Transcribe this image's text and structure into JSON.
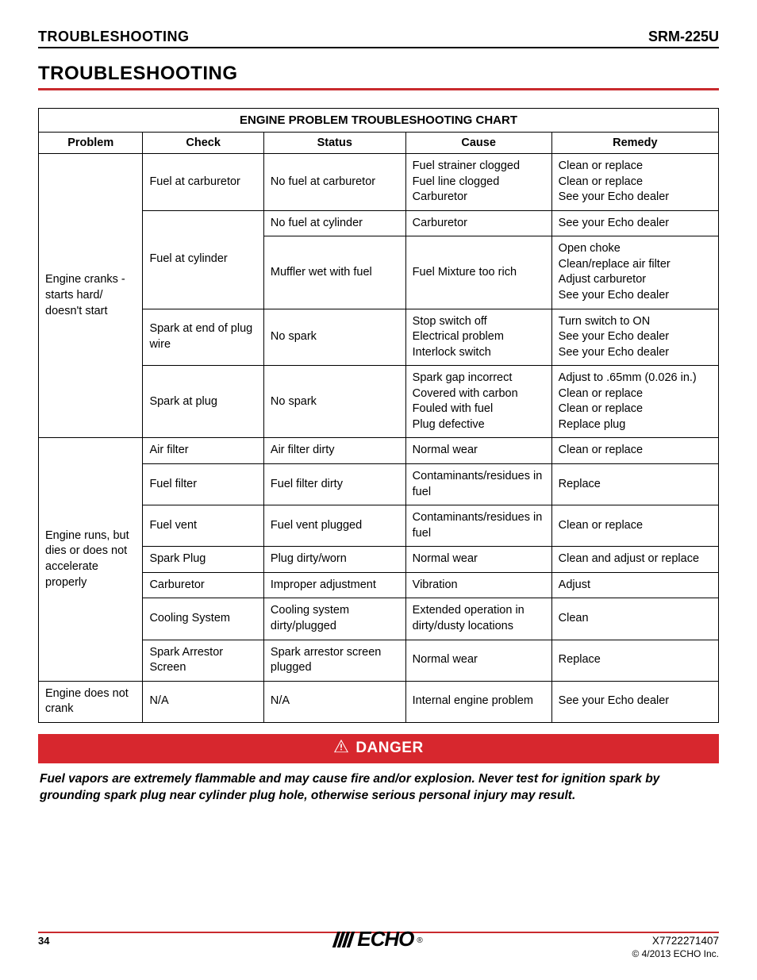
{
  "header": {
    "left": "TROUBLESHOOTING",
    "right": "SRM-225U"
  },
  "section_title": "TROUBLESHOOTING",
  "table": {
    "caption": "ENGINE PROBLEM TROUBLESHOOTING CHART",
    "columns": [
      "Problem",
      "Check",
      "Status",
      "Cause",
      "Remedy"
    ],
    "groups": [
      {
        "problem": "Engine cranks - starts hard/ doesn't start",
        "checks": [
          {
            "check": "Fuel at carburetor",
            "rows": [
              {
                "status": "No fuel at carburetor",
                "cause": "Fuel strainer clogged\nFuel line clogged\nCarburetor",
                "remedy": "Clean or replace\nClean or replace\nSee your Echo dealer"
              }
            ]
          },
          {
            "check": "Fuel at cylinder",
            "rows": [
              {
                "status": "No fuel at cylinder",
                "cause": "Carburetor",
                "remedy": "See your Echo dealer"
              },
              {
                "status": "Muffler wet with fuel",
                "cause": "Fuel Mixture too rich",
                "remedy": "Open choke\nClean/replace air filter\nAdjust carburetor\nSee your Echo dealer"
              }
            ]
          },
          {
            "check": "Spark at end of plug wire",
            "rows": [
              {
                "status": "No spark",
                "cause": "Stop switch off\nElectrical problem\nInterlock switch",
                "remedy": "Turn switch to ON\nSee your Echo dealer\nSee your Echo dealer"
              }
            ]
          },
          {
            "check": "Spark at plug",
            "rows": [
              {
                "status": "No spark",
                "cause": "Spark gap incorrect\nCovered with carbon\nFouled with fuel\nPlug defective",
                "remedy": "Adjust to .65mm (0.026 in.)\nClean or replace\nClean or replace\nReplace plug"
              }
            ]
          }
        ]
      },
      {
        "problem": "Engine runs, but dies or does not accelerate properly",
        "checks": [
          {
            "check": "Air filter",
            "rows": [
              {
                "status": "Air filter dirty",
                "cause": "Normal wear",
                "remedy": "Clean or replace"
              }
            ]
          },
          {
            "check": "Fuel filter",
            "rows": [
              {
                "status": "Fuel filter dirty",
                "cause": "Contaminants/residues in fuel",
                "remedy": "Replace"
              }
            ]
          },
          {
            "check": "Fuel vent",
            "rows": [
              {
                "status": "Fuel vent plugged",
                "cause": "Contaminants/residues in fuel",
                "remedy": "Clean or replace"
              }
            ]
          },
          {
            "check": "Spark Plug",
            "rows": [
              {
                "status": "Plug dirty/worn",
                "cause": "Normal wear",
                "remedy": "Clean and adjust or replace"
              }
            ]
          },
          {
            "check": "Carburetor",
            "rows": [
              {
                "status": "Improper adjustment",
                "cause": "Vibration",
                "remedy": "Adjust"
              }
            ]
          },
          {
            "check": "Cooling System",
            "rows": [
              {
                "status": "Cooling system dirty/plugged",
                "cause": "Extended operation in dirty/dusty locations",
                "remedy": "Clean"
              }
            ]
          },
          {
            "check": "Spark Arrestor Screen",
            "rows": [
              {
                "status": "Spark arrestor screen plugged",
                "cause": "Normal wear",
                "remedy": "Replace"
              }
            ]
          }
        ]
      },
      {
        "problem": "Engine does not crank",
        "checks": [
          {
            "check": "N/A",
            "rows": [
              {
                "status": "N/A",
                "cause": "Internal engine problem",
                "remedy": "See your Echo dealer"
              }
            ]
          }
        ]
      }
    ]
  },
  "danger": {
    "label": "DANGER",
    "text": "Fuel vapors are extremely flammable and may cause fire and/or explosion. Never test for ignition spark by grounding spark plug near cylinder plug hole, otherwise serious personal injury may result."
  },
  "footer": {
    "page": "34",
    "doc_number": "X7722271407",
    "copyright": "© 4/2013 ECHO Inc.",
    "logo_text": "ECHO"
  },
  "colors": {
    "accent": "#c92a2e",
    "danger_bg": "#d7272e",
    "text": "#000000",
    "background": "#ffffff"
  }
}
